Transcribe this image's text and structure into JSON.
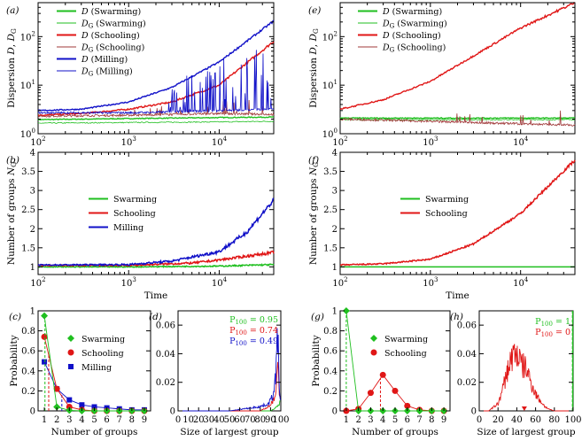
{
  "colors": {
    "swarm": "#1fbf1f",
    "school": "#e01616",
    "mill": "#1010c8",
    "schoolG": "#a03a3a"
  },
  "chart_data": [
    {
      "id": "a",
      "type": "line",
      "panel_label": "(a)",
      "ylabel": "Dispersion D, DG",
      "xlabel": "",
      "xscale": "log",
      "yscale": "log",
      "xlim": [
        100,
        40000
      ],
      "ylim": [
        1,
        500
      ],
      "xticks": [
        "10^2",
        "10^3",
        "10^4"
      ],
      "yticks": [
        "10^0",
        "10^1",
        "10^2"
      ],
      "legend": [
        {
          "sym": "D",
          "name": "(Swarming)",
          "color": "swarm"
        },
        {
          "sym": "DG",
          "name": "(Swarming)",
          "color": "swarm"
        },
        {
          "sym": "D",
          "name": "(Schooling)",
          "color": "school"
        },
        {
          "sym": "DG",
          "name": "(Schooling)",
          "color": "schoolG"
        },
        {
          "sym": "D",
          "name": "(Milling)",
          "color": "mill"
        },
        {
          "sym": "DG",
          "name": "(Milling)",
          "color": "mill"
        }
      ],
      "series": [
        {
          "name": "D (Swarming)",
          "x": [
            100,
            1000,
            10000,
            40000
          ],
          "y": [
            1.95,
            2.05,
            2.15,
            2.2
          ]
        },
        {
          "name": "DG (Swarming)",
          "x": [
            100,
            1000,
            10000,
            40000
          ],
          "y": [
            1.65,
            1.7,
            1.75,
            1.8
          ]
        },
        {
          "name": "D (Schooling)",
          "x": [
            100,
            300,
            1000,
            3000,
            10000,
            40000
          ],
          "y": [
            2.4,
            2.6,
            3.2,
            4.5,
            10,
            80
          ]
        },
        {
          "name": "DG (Schooling)",
          "x": [
            100,
            1000,
            10000,
            40000
          ],
          "y": [
            2.3,
            2.4,
            2.6,
            2.5
          ]
        },
        {
          "name": "D (Milling)",
          "x": [
            100,
            300,
            1000,
            3000,
            10000,
            40000
          ],
          "y": [
            3.0,
            3.2,
            4.5,
            9,
            30,
            210
          ]
        },
        {
          "name": "DG (Milling)",
          "x": [
            100,
            1000,
            3000,
            10000,
            40000
          ],
          "y": [
            2.7,
            2.7,
            2.8,
            3.0,
            3.2
          ]
        }
      ]
    },
    {
      "id": "b",
      "type": "line",
      "panel_label": "(b)",
      "ylabel": "Number of groups NG",
      "xlabel": "Time",
      "xscale": "log",
      "yscale": "linear",
      "xlim": [
        100,
        40000
      ],
      "ylim": [
        0.8,
        4
      ],
      "xticks": [
        "10^2",
        "10^3",
        "10^4"
      ],
      "yticks": [
        "1",
        "1.5",
        "2",
        "2.5",
        "3",
        "3.5",
        "4"
      ],
      "legend": [
        {
          "name": "Swarming",
          "color": "swarm"
        },
        {
          "name": "Schooling",
          "color": "school"
        },
        {
          "name": "Milling",
          "color": "mill"
        }
      ],
      "series": [
        {
          "name": "Swarming",
          "x": [
            100,
            1000,
            10000,
            40000
          ],
          "y": [
            1.0,
            1.0,
            1.02,
            1.06
          ]
        },
        {
          "name": "Schooling",
          "x": [
            100,
            1000,
            5000,
            10000,
            40000
          ],
          "y": [
            1.04,
            1.04,
            1.1,
            1.18,
            1.38
          ]
        },
        {
          "name": "Milling",
          "x": [
            100,
            1000,
            3000,
            10000,
            20000,
            40000
          ],
          "y": [
            1.05,
            1.06,
            1.15,
            1.4,
            1.9,
            2.75
          ]
        }
      ]
    },
    {
      "id": "c",
      "type": "line",
      "panel_label": "(c)",
      "ylabel": "Probability",
      "xlabel": "Number of groups",
      "xlim": [
        0.5,
        9.5
      ],
      "ylim": [
        0,
        1
      ],
      "xticks": [
        "1",
        "2",
        "3",
        "4",
        "5",
        "6",
        "7",
        "8",
        "9"
      ],
      "yticks": [
        "0",
        "0.2",
        "0.4",
        "0.6",
        "0.8",
        "1"
      ],
      "legend": [
        {
          "name": "Swarming",
          "color": "swarm",
          "marker": "diamond"
        },
        {
          "name": "Schooling",
          "color": "school",
          "marker": "circle"
        },
        {
          "name": "Milling",
          "color": "mill",
          "marker": "square"
        }
      ],
      "series": [
        {
          "name": "Swarming",
          "x": [
            1,
            2,
            3,
            4,
            5,
            6,
            7,
            8,
            9
          ],
          "y": [
            0.95,
            0.04,
            0.005,
            0,
            0,
            0,
            0,
            0,
            0
          ],
          "mean": 1.05
        },
        {
          "name": "Schooling",
          "x": [
            1,
            2,
            3,
            4,
            5,
            6,
            7,
            8,
            9
          ],
          "y": [
            0.74,
            0.22,
            0.04,
            0.01,
            0,
            0,
            0,
            0,
            0
          ],
          "mean": 1.35
        },
        {
          "name": "Milling",
          "x": [
            1,
            2,
            3,
            4,
            5,
            6,
            7,
            8,
            9
          ],
          "y": [
            0.49,
            0.22,
            0.11,
            0.06,
            0.04,
            0.03,
            0.02,
            0.01,
            0.01
          ],
          "mean": 2.4
        }
      ]
    },
    {
      "id": "d",
      "type": "line",
      "panel_label": "(d)",
      "ylabel": "",
      "xlabel": "Size of largest group",
      "xlim": [
        0,
        100
      ],
      "ylim": [
        0,
        0.07
      ],
      "xticks": [
        "0",
        "10",
        "20",
        "30",
        "40",
        "50",
        "60",
        "70",
        "80",
        "90",
        "100"
      ],
      "yticks": [
        "0",
        "0.02",
        "0.04",
        "0.06"
      ],
      "annotations": [
        {
          "text": "P100 = 0.95",
          "color": "swarm"
        },
        {
          "text": "P100 = 0.74",
          "color": "school"
        },
        {
          "text": "P100 = 0.49",
          "color": "mill"
        }
      ],
      "series": [
        {
          "name": "Swarming",
          "x": [
            90,
            95,
            98,
            99
          ],
          "y": [
            0,
            0.002,
            0.004,
            0.007
          ]
        },
        {
          "name": "Schooling",
          "x": [
            80,
            90,
            94,
            96,
            97,
            98,
            99
          ],
          "y": [
            0,
            0.004,
            0.01,
            0.02,
            0.03,
            0.018,
            0.008
          ]
        },
        {
          "name": "Milling",
          "x": [
            50,
            70,
            80,
            88,
            92,
            95,
            97,
            98,
            99
          ],
          "y": [
            0,
            0.002,
            0.003,
            0.005,
            0.01,
            0.025,
            0.052,
            0.03,
            0.01
          ]
        }
      ]
    },
    {
      "id": "e",
      "type": "line",
      "panel_label": "(e)",
      "ylabel": "Dispersion D, DG",
      "xlabel": "",
      "xscale": "log",
      "yscale": "log",
      "xlim": [
        100,
        40000
      ],
      "ylim": [
        1,
        500
      ],
      "xticks": [
        "10^2",
        "10^3",
        "10^4"
      ],
      "yticks": [
        "10^0",
        "10^1",
        "10^2"
      ],
      "legend": [
        {
          "sym": "D",
          "name": "(Swarming)",
          "color": "swarm"
        },
        {
          "sym": "DG",
          "name": "(Swarming)",
          "color": "swarm"
        },
        {
          "sym": "D",
          "name": "(Schooling)",
          "color": "school"
        },
        {
          "sym": "DG",
          "name": "(Schooling)",
          "color": "schoolG"
        }
      ],
      "series": [
        {
          "name": "D (Swarming)",
          "x": [
            100,
            40000
          ],
          "y": [
            2.1,
            2.1
          ]
        },
        {
          "name": "DG (Swarming)",
          "x": [
            100,
            40000
          ],
          "y": [
            1.95,
            1.95
          ]
        },
        {
          "name": "D (Schooling)",
          "x": [
            100,
            300,
            1000,
            3000,
            10000,
            40000
          ],
          "y": [
            3.2,
            5,
            12,
            40,
            150,
            500
          ]
        },
        {
          "name": "DG (Schooling)",
          "x": [
            100,
            1000,
            10000,
            40000
          ],
          "y": [
            2.0,
            1.8,
            1.6,
            1.5
          ]
        }
      ]
    },
    {
      "id": "f",
      "type": "line",
      "panel_label": "(f)",
      "ylabel": "Number of groups NG",
      "xlabel": "Time",
      "xscale": "log",
      "yscale": "linear",
      "xlim": [
        100,
        40000
      ],
      "ylim": [
        0.8,
        4
      ],
      "xticks": [
        "10^2",
        "10^3",
        "10^4"
      ],
      "yticks": [
        "1",
        "1.5",
        "2",
        "2.5",
        "3",
        "3.5",
        "4"
      ],
      "legend": [
        {
          "name": "Swarming",
          "color": "swarm"
        },
        {
          "name": "Schooling",
          "color": "school"
        }
      ],
      "series": [
        {
          "name": "Swarming",
          "x": [
            100,
            40000
          ],
          "y": [
            1.0,
            1.0
          ]
        },
        {
          "name": "Schooling",
          "x": [
            100,
            300,
            1000,
            3000,
            10000,
            40000
          ],
          "y": [
            1.05,
            1.08,
            1.2,
            1.6,
            2.4,
            3.8
          ]
        }
      ]
    },
    {
      "id": "g",
      "type": "line",
      "panel_label": "(g)",
      "ylabel": "Probability",
      "xlabel": "Number of groups",
      "xlim": [
        0.5,
        9.5
      ],
      "ylim": [
        0,
        1
      ],
      "xticks": [
        "1",
        "2",
        "3",
        "4",
        "5",
        "6",
        "7",
        "8",
        "9"
      ],
      "yticks": [
        "0",
        "0.2",
        "0.4",
        "0.6",
        "0.8",
        "1"
      ],
      "legend": [
        {
          "name": "Swarming",
          "color": "swarm",
          "marker": "diamond"
        },
        {
          "name": "Schooling",
          "color": "school",
          "marker": "circle"
        }
      ],
      "series": [
        {
          "name": "Swarming",
          "x": [
            1,
            2,
            3,
            4,
            5,
            6,
            7,
            8,
            9
          ],
          "y": [
            1,
            0,
            0,
            0,
            0,
            0,
            0,
            0,
            0
          ],
          "mean": 1.0
        },
        {
          "name": "Schooling",
          "x": [
            1,
            2,
            3,
            4,
            5,
            6,
            7,
            8,
            9
          ],
          "y": [
            0,
            0.02,
            0.18,
            0.36,
            0.2,
            0.05,
            0.01,
            0,
            0
          ],
          "mean": 3.8
        }
      ]
    },
    {
      "id": "h",
      "type": "line",
      "panel_label": "(h)",
      "ylabel": "",
      "xlabel": "Size of largest group",
      "xlim": [
        0,
        100
      ],
      "ylim": [
        0,
        0.07
      ],
      "xticks": [
        "0",
        "20",
        "40",
        "60",
        "80",
        "100"
      ],
      "yticks": [
        "0",
        "0.02",
        "0.04",
        "0.06"
      ],
      "annotations": [
        {
          "text": "P100 = 1",
          "color": "swarm"
        },
        {
          "text": "P100 = 0",
          "color": "school"
        }
      ],
      "series": [
        {
          "name": "Swarming",
          "x": [
            99,
            100
          ],
          "y": [
            0,
            0.07
          ]
        },
        {
          "name": "Schooling",
          "x": [
            10,
            20,
            25,
            30,
            35,
            40,
            45,
            50,
            55,
            60,
            65,
            70,
            75,
            80
          ],
          "y": [
            0,
            0.005,
            0.015,
            0.028,
            0.038,
            0.041,
            0.032,
            0.03,
            0.02,
            0.012,
            0.007,
            0.003,
            0.001,
            0
          ]
        }
      ]
    }
  ]
}
